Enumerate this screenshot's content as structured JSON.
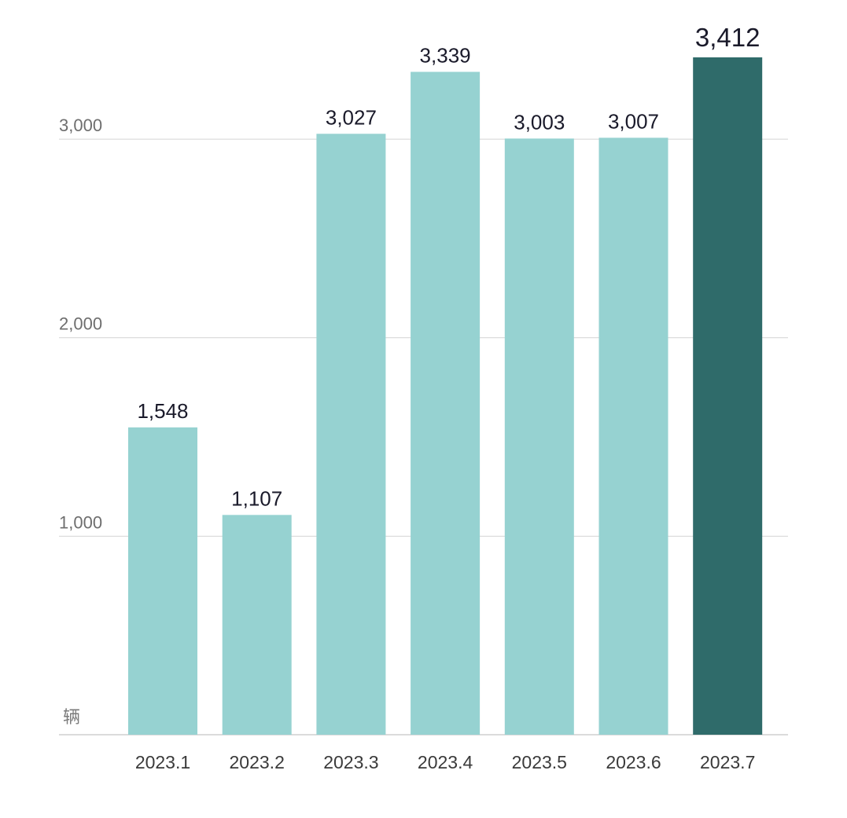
{
  "chart_data": {
    "type": "bar",
    "categories": [
      "2023.1",
      "2023.2",
      "2023.3",
      "2023.4",
      "2023.5",
      "2023.6",
      "2023.7"
    ],
    "values": [
      1548,
      1107,
      3027,
      3339,
      3003,
      3007,
      3412
    ],
    "value_labels": [
      "1,548",
      "1,107",
      "3,027",
      "3,339",
      "3,003",
      "3,007",
      "3,412"
    ],
    "y_ticks": [
      1000,
      2000,
      3000
    ],
    "y_tick_labels": [
      "1,000",
      "2,000",
      "3,000"
    ],
    "unit_label": "辆",
    "ylim": [
      0,
      3412
    ],
    "grid": true,
    "highlight_index": 6,
    "colors": {
      "bar": "#96d2d1",
      "highlight": "#2f6b6a",
      "grid": "#d4d4d4"
    }
  }
}
